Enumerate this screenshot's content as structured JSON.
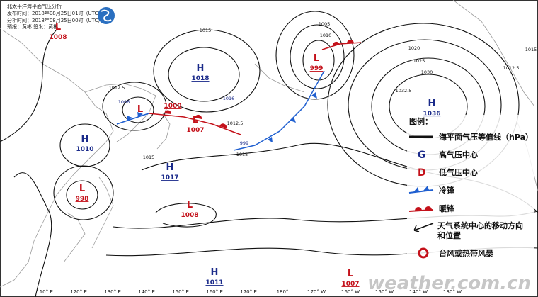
{
  "header": {
    "title": "北太平洋海平面气压分析",
    "issued": "发布时间：2018年08月25日01时（UTC）",
    "analysis": "分析时间：2018年08月25日00时（UTC）",
    "staff": "预报：黄彬 签发：黄彬"
  },
  "centers": [
    {
      "letter": "L",
      "pressure": 1008
    },
    {
      "letter": "H",
      "pressure": 1018
    },
    {
      "letter": "L",
      "pressure": 999
    },
    {
      "letter": "H",
      "pressure": 1036
    },
    {
      "letter": "L",
      "pressure": 1000
    },
    {
      "letter": "L",
      "pressure": 1007
    },
    {
      "letter": "H",
      "pressure": 1010
    },
    {
      "letter": "H",
      "pressure": 1017
    },
    {
      "letter": "L",
      "pressure": 998
    },
    {
      "letter": "L",
      "pressure": 1008
    },
    {
      "letter": "H",
      "pressure": 1011
    },
    {
      "letter": "L",
      "pressure": 1007
    }
  ],
  "forecast_labels": [
    1016,
    1006,
    999
  ],
  "isobar_labels": [
    "1015",
    "1012.5",
    "1012.5",
    "1015",
    "1005",
    "1010",
    "1020",
    "1025",
    "1030",
    "1032.5",
    "1012.5",
    "1015",
    "1015"
  ],
  "longitudes": [
    "110° E",
    "120° E",
    "130° E",
    "140° E",
    "150° E",
    "160° E",
    "170° E",
    "180°",
    "170° W",
    "160° W",
    "150° W",
    "140° W",
    "130° W"
  ],
  "legend": {
    "title": "图例：",
    "items": [
      "海平面气压等值线（hPa）",
      "高气压中心",
      "低气压中心",
      "冷锋",
      "暖锋",
      "天气系统中心的移动方向和位置",
      "台风或热带风暴"
    ]
  },
  "watermark": "weather.com.cn"
}
